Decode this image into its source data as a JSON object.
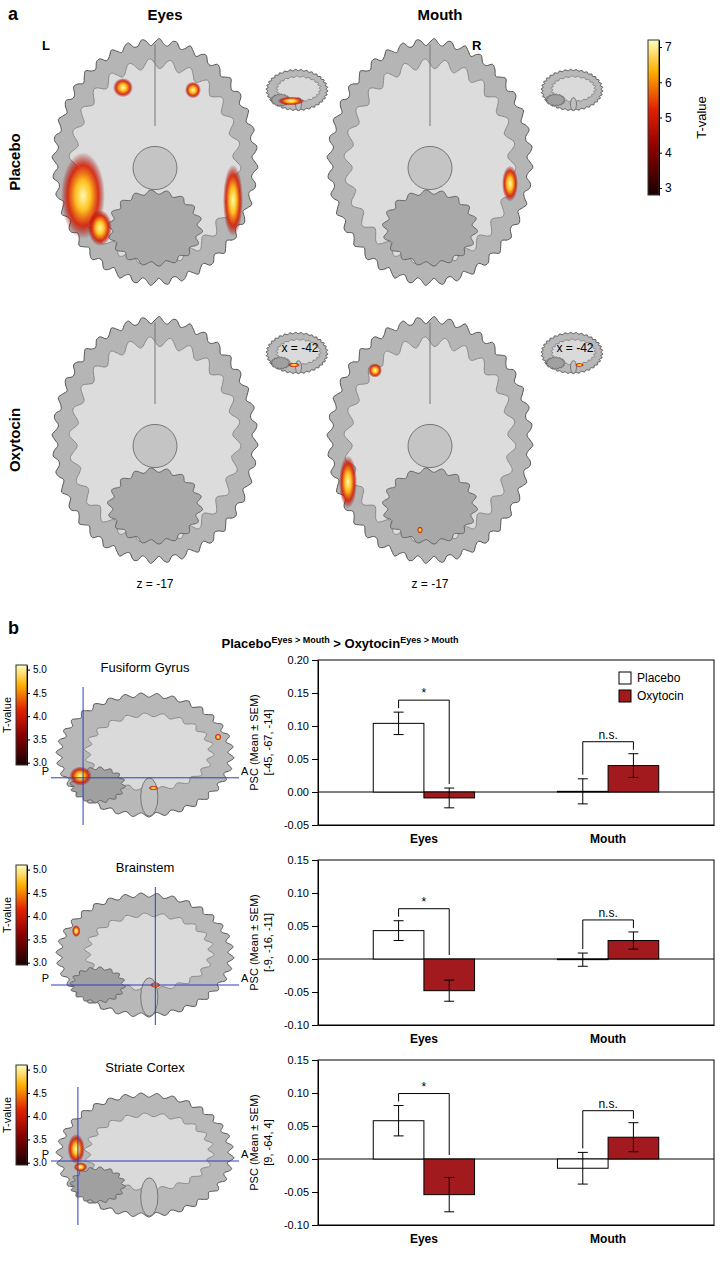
{
  "figure": {
    "panel_a": {
      "label": "a",
      "columns": [
        "Eyes",
        "Mouth"
      ],
      "rows": [
        "Placebo",
        "Oxytocin"
      ],
      "hemispheres": [
        "L",
        "R"
      ],
      "slice_x": "x = -42",
      "slice_z": "z = -17",
      "colorbar": {
        "label": "T-value",
        "range": [
          2.8,
          7.2
        ],
        "ticks": [
          3,
          4,
          5,
          6,
          7
        ]
      }
    },
    "panel_b": {
      "label": "b",
      "title": [
        {
          "text": "Placebo",
          "sup": "Eyes > Mouth"
        },
        {
          "text": " > Oxytocin",
          "sup": "Eyes > Mouth"
        }
      ],
      "regions": [
        "Fusiform Gyrus",
        "Brainstem",
        "Striate Cortex"
      ],
      "orientation_labels": [
        "P",
        "A"
      ],
      "colorbar": {
        "label": "T-value",
        "range": [
          2.95,
          5.1
        ],
        "ticks": [
          {
            "value": 3,
            "label": "3.0"
          },
          3.5,
          {
            "value": 4,
            "label": "4.0"
          },
          4.5,
          {
            "value": 5,
            "label": "5.0"
          }
        ]
      }
    }
  },
  "chart_data": [
    {
      "type": "bar",
      "categories": [
        "Eyes",
        "Mouth"
      ],
      "series": [
        {
          "name": "Placebo",
          "color": "#ffffff",
          "values": [
            0.104,
            0.001
          ],
          "errors": [
            0.017,
            0.019
          ]
        },
        {
          "name": "Oxytocin",
          "color": "#a31a1e",
          "values": [
            -0.009,
            0.04
          ],
          "errors": [
            0.015,
            0.018
          ]
        }
      ],
      "y_label": [
        "PSC (Mean ± SEM)",
        "[-45, -67, -14]"
      ],
      "ylim": [
        -0.05,
        0.2
      ],
      "yticks": [
        -0.05,
        {
          "value": 0,
          "label": "0.00"
        },
        0.05,
        {
          "value": 0.1,
          "label": "0.10"
        },
        0.15,
        {
          "value": 0.2,
          "label": "0.20"
        }
      ],
      "significance": [
        "*",
        "n.s."
      ],
      "legend": "top-right"
    },
    {
      "type": "bar",
      "categories": [
        "Eyes",
        "Mouth"
      ],
      "series": [
        {
          "color": "#ffffff",
          "values": [
            0.043,
            -0.001
          ],
          "errors": [
            0.015,
            0.01
          ]
        },
        {
          "color": "#a31a1e",
          "values": [
            -0.048,
            0.028
          ],
          "errors": [
            0.016,
            0.013
          ]
        }
      ],
      "y_label": [
        "PSC (Mean ± SEM)",
        "[-9, -16, -11]"
      ],
      "ylim": [
        -0.1,
        0.15
      ],
      "yticks": [
        {
          "value": -0.1,
          "label": "-0.10"
        },
        -0.05,
        {
          "value": 0,
          "label": "0.00"
        },
        0.05,
        {
          "value": 0.1,
          "label": "0.10"
        },
        0.15
      ],
      "significance": [
        "*",
        "n.s."
      ]
    },
    {
      "type": "bar",
      "categories": [
        "Eyes",
        "Mouth"
      ],
      "series": [
        {
          "color": "#ffffff",
          "values": [
            0.058,
            -0.014
          ],
          "errors": [
            0.023,
            0.024
          ]
        },
        {
          "color": "#a31a1e",
          "values": [
            -0.054,
            0.033
          ],
          "errors": [
            0.026,
            0.022
          ]
        }
      ],
      "y_label": [
        "PSC (Mean ± SEM)",
        "[9, -64, 4]"
      ],
      "ylim": [
        -0.1,
        0.15
      ],
      "yticks": [
        {
          "value": -0.1,
          "label": "-0.10"
        },
        -0.05,
        {
          "value": 0,
          "label": "0.00"
        },
        0.05,
        {
          "value": 0.1,
          "label": "0.10"
        },
        0.15
      ],
      "significance": [
        "*",
        "n.s."
      ]
    }
  ]
}
